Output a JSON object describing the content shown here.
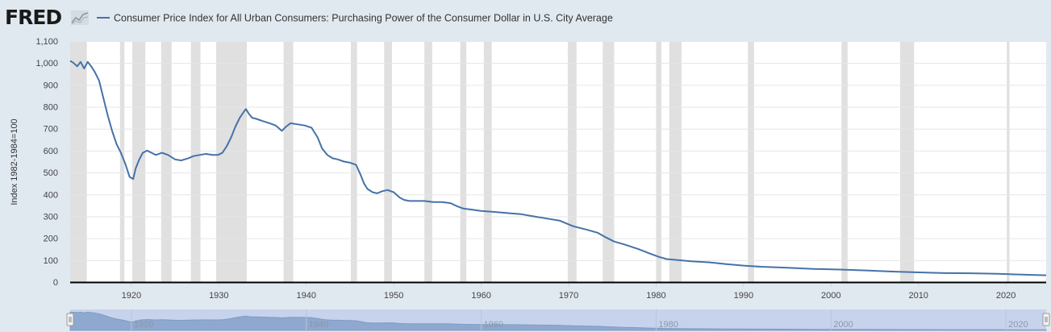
{
  "brand": {
    "logo_text": "FRED",
    "logo_icon": "chart-line-icon"
  },
  "colors": {
    "background": "#e1e9f0",
    "plot_bg": "#ffffff",
    "line": "#4572a7",
    "recession": "#e0e0e0",
    "navigator_fill": "#8fa8cf",
    "navigator_bg": "#c7d3ec"
  },
  "chart_data": {
    "type": "line",
    "title": "",
    "xlabel": "",
    "ylabel": "Index 1982-1984=100",
    "ylim": [
      0,
      1100
    ],
    "xlim": [
      1913,
      2024.6
    ],
    "yticks": [
      "0",
      "100",
      "200",
      "300",
      "400",
      "500",
      "600",
      "700",
      "800",
      "900",
      "1,000",
      "1,100"
    ],
    "xticks": [
      "1920",
      "1930",
      "1940",
      "1950",
      "1960",
      "1970",
      "1980",
      "1990",
      "2000",
      "2010",
      "2020"
    ],
    "grid": true,
    "legend": "top-left",
    "series": [
      {
        "name": "Consumer Price Index for All Urban Consumers: Purchasing Power of the Consumer Dollar in U.S. City Average",
        "x": [
          1913.0,
          1913.4,
          1913.8,
          1914.2,
          1914.6,
          1915.0,
          1915.4,
          1915.8,
          1916.3,
          1916.8,
          1917.3,
          1917.8,
          1918.3,
          1918.8,
          1919.3,
          1919.8,
          1920.2,
          1920.5,
          1920.9,
          1921.3,
          1921.8,
          1922.3,
          1922.8,
          1923.5,
          1924.2,
          1925.0,
          1925.7,
          1926.5,
          1927.1,
          1927.8,
          1928.5,
          1929.3,
          1929.9,
          1930.4,
          1930.9,
          1931.4,
          1931.9,
          1932.4,
          1932.9,
          1933.1,
          1933.4,
          1933.8,
          1934.3,
          1935.0,
          1935.8,
          1936.5,
          1937.2,
          1937.7,
          1938.2,
          1939.0,
          1939.8,
          1940.6,
          1941.3,
          1941.8,
          1942.4,
          1943.0,
          1943.6,
          1944.3,
          1945.0,
          1945.7,
          1946.2,
          1946.6,
          1947.0,
          1947.6,
          1948.1,
          1948.7,
          1949.3,
          1950.0,
          1950.7,
          1951.2,
          1951.8,
          1952.5,
          1953.5,
          1954.5,
          1955.5,
          1956.5,
          1957.3,
          1958.0,
          1959.0,
          1960.0,
          1961.5,
          1963.0,
          1964.5,
          1966.0,
          1967.5,
          1969.0,
          1970.5,
          1972.0,
          1973.3,
          1974.2,
          1975.2,
          1976.5,
          1978.0,
          1979.3,
          1980.3,
          1981.2,
          1982.5,
          1984.0,
          1986.0,
          1988.0,
          1990.0,
          1992.0,
          1995.0,
          1998.0,
          2001.0,
          2004.0,
          2007.0,
          2008.5,
          2010.0,
          2013.0,
          2016.0,
          2019.0,
          2021.0,
          2022.5,
          2024.6
        ],
        "y": [
          1010,
          1000,
          985,
          1005,
          975,
          1005,
          985,
          960,
          920,
          840,
          760,
          690,
          630,
          590,
          540,
          480,
          470,
          520,
          560,
          590,
          600,
          590,
          580,
          590,
          580,
          560,
          555,
          565,
          575,
          580,
          585,
          580,
          580,
          590,
          620,
          660,
          710,
          750,
          780,
          790,
          770,
          750,
          745,
          735,
          725,
          715,
          690,
          710,
          725,
          720,
          715,
          705,
          660,
          610,
          580,
          565,
          560,
          550,
          545,
          535,
          490,
          450,
          425,
          410,
          405,
          415,
          420,
          410,
          385,
          375,
          370,
          370,
          370,
          365,
          365,
          360,
          345,
          335,
          330,
          325,
          320,
          315,
          310,
          300,
          290,
          280,
          255,
          240,
          225,
          205,
          185,
          170,
          150,
          130,
          115,
          105,
          100,
          95,
          90,
          82,
          75,
          70,
          65,
          60,
          57,
          53,
          48,
          46,
          44,
          41,
          40,
          38,
          35,
          33,
          31
        ]
      }
    ],
    "recessions": [
      [
        1913.0,
        1914.9
      ],
      [
        1918.7,
        1919.2
      ],
      [
        1920.1,
        1921.6
      ],
      [
        1923.4,
        1924.6
      ],
      [
        1926.8,
        1927.9
      ],
      [
        1929.7,
        1933.2
      ],
      [
        1937.4,
        1938.5
      ],
      [
        1945.1,
        1945.8
      ],
      [
        1948.9,
        1949.8
      ],
      [
        1953.5,
        1954.4
      ],
      [
        1957.6,
        1958.3
      ],
      [
        1960.3,
        1961.2
      ],
      [
        1969.9,
        1970.9
      ],
      [
        1973.9,
        1975.2
      ],
      [
        1980.0,
        1980.6
      ],
      [
        1981.5,
        1982.9
      ],
      [
        1990.5,
        1991.2
      ],
      [
        2001.2,
        2001.9
      ],
      [
        2007.9,
        2009.5
      ],
      [
        2020.1,
        2020.4
      ]
    ],
    "navigator_xticks": [
      "1920",
      "1940",
      "1960",
      "1980",
      "2000",
      "2020"
    ]
  }
}
